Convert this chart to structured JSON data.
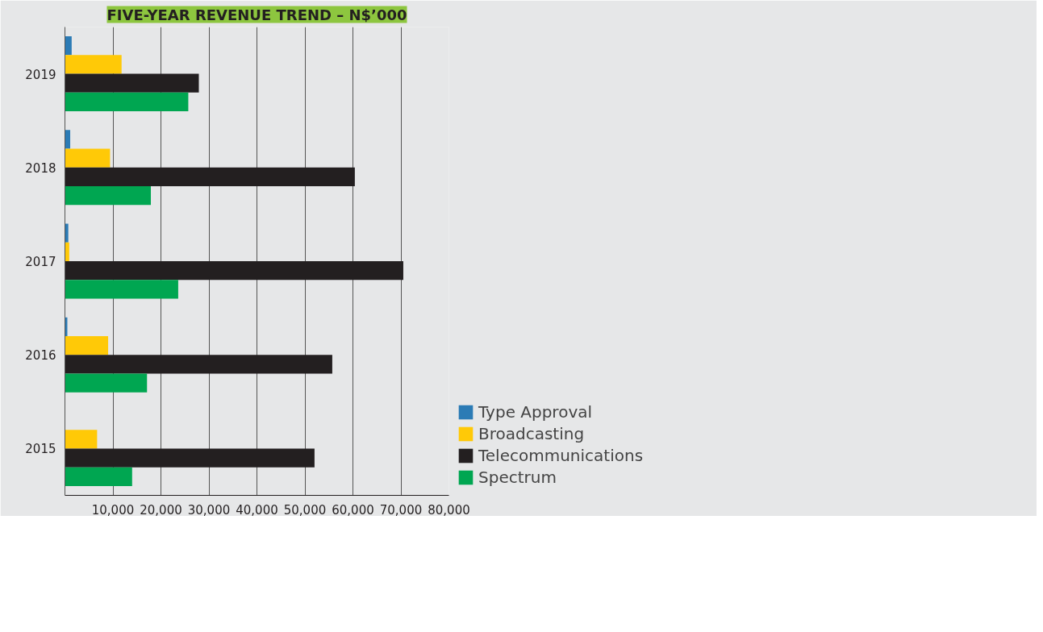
{
  "chart_data": {
    "type": "bar",
    "orientation": "horizontal",
    "title": "FIVE-YEAR REVENUE TREND – N$’000",
    "categories": [
      "2019",
      "2018",
      "2017",
      "2016",
      "2015"
    ],
    "series": [
      {
        "name": "Type Approval",
        "color": "#2b7bb5",
        "values": [
          1400,
          1100,
          700,
          500,
          null
        ]
      },
      {
        "name": "Broadcasting",
        "color": "#ffc907",
        "values": [
          11800,
          9400,
          900,
          9000,
          6700
        ]
      },
      {
        "name": "Telecommunications",
        "color": "#231f20",
        "values": [
          27900,
          60400,
          70500,
          55700,
          52000
        ]
      },
      {
        "name": "Spectrum",
        "color": "#00a651",
        "values": [
          25700,
          17900,
          23600,
          17100,
          14000
        ]
      }
    ],
    "xlim": [
      0,
      80000
    ],
    "xticks": [
      {
        "value": 10000,
        "label": "10,000"
      },
      {
        "value": 20000,
        "label": "20,000"
      },
      {
        "value": 30000,
        "label": "30,000"
      },
      {
        "value": 40000,
        "label": "40,000"
      },
      {
        "value": 50000,
        "label": "50,000"
      },
      {
        "value": 60000,
        "label": "60,000"
      },
      {
        "value": 70000,
        "label": "70,000"
      },
      {
        "value": 80000,
        "label": "80,000"
      }
    ],
    "grid": "x",
    "legend": "right"
  }
}
